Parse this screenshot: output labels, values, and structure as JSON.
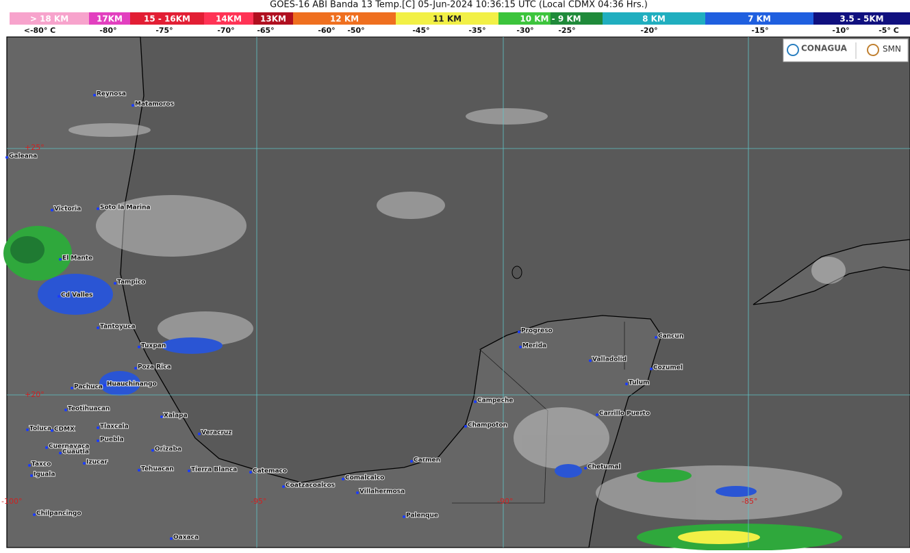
{
  "header": {
    "title": "GOES-16 ABI Banda 13 Temp.[C] 05-Jun-2024 10:36:15 UTC (Local CDMX  04:36 Hrs.)"
  },
  "colorbar": {
    "segments": [
      {
        "label": "> 18 KM",
        "colors": [
          "#f7a3cc"
        ]
      },
      {
        "label": "17KM",
        "colors": [
          "#e23fbf"
        ]
      },
      {
        "label": "15 - 16KM",
        "colors": [
          "#e21e34"
        ]
      },
      {
        "label": "14KM",
        "colors": [
          "#ff3355"
        ]
      },
      {
        "label": "13KM",
        "colors": [
          "#b00f1f"
        ]
      },
      {
        "label": "12 KM",
        "colors": [
          "#ef6f1f"
        ]
      },
      {
        "label": "11 KM",
        "colors": [
          "#f2f046"
        ]
      },
      {
        "label": "10 KM - 9 KM",
        "colors": [
          "#3cc43c",
          "#1f8a3a"
        ]
      },
      {
        "label": "8 KM",
        "colors": [
          "#20aebf"
        ]
      },
      {
        "label": "7 KM",
        "colors": [
          "#1f5fdf"
        ]
      },
      {
        "label": "3.5 - 5KM",
        "colors": [
          "#10107f"
        ]
      }
    ],
    "temps": [
      "<-80° C",
      "-80°",
      "-75°",
      "-70°",
      "-65°",
      "-60°",
      "-50°",
      "-45°",
      "-35°",
      "-30°",
      "-25°",
      "-20°",
      "-15°",
      "-10°",
      "-5° C"
    ]
  },
  "grid_labels": [
    "+25°",
    "+20°",
    "-100°",
    "-95°",
    "-90°",
    "-85°"
  ],
  "cities": [
    "Reynosa",
    "Matamoros",
    "Galeana",
    "Victoria",
    "Soto la Marina",
    "El Mante",
    "Tampico",
    "Cd Valles",
    "Tantoyuca",
    "Tuxpan",
    "Poza Rica",
    "Pachuca",
    "Huauchinango",
    "Teotihuacan",
    "Toluca",
    "CDMX",
    "Tlaxcala",
    "Puebla",
    "Xalapa",
    "Veracruz",
    "Cuernavaca",
    "Cuautla",
    "Orizaba",
    "Izucar",
    "Taxco",
    "Tehuacan",
    "Tierra Blanca",
    "Catemaco",
    "Iguala",
    "Coatzacoalcos",
    "Comalcalco",
    "Villahermosa",
    "Chilpancingo",
    "Palenque",
    "Oaxaca",
    "Carmen",
    "Champoton",
    "Campeche",
    "Progreso",
    "Merida",
    "Valladolid",
    "Cancun",
    "Cozumel",
    "Tulum",
    "Carrillo Puerto",
    "Chetumal"
  ],
  "logos": {
    "conagua": "CONAGUA",
    "smn": "SMN"
  }
}
